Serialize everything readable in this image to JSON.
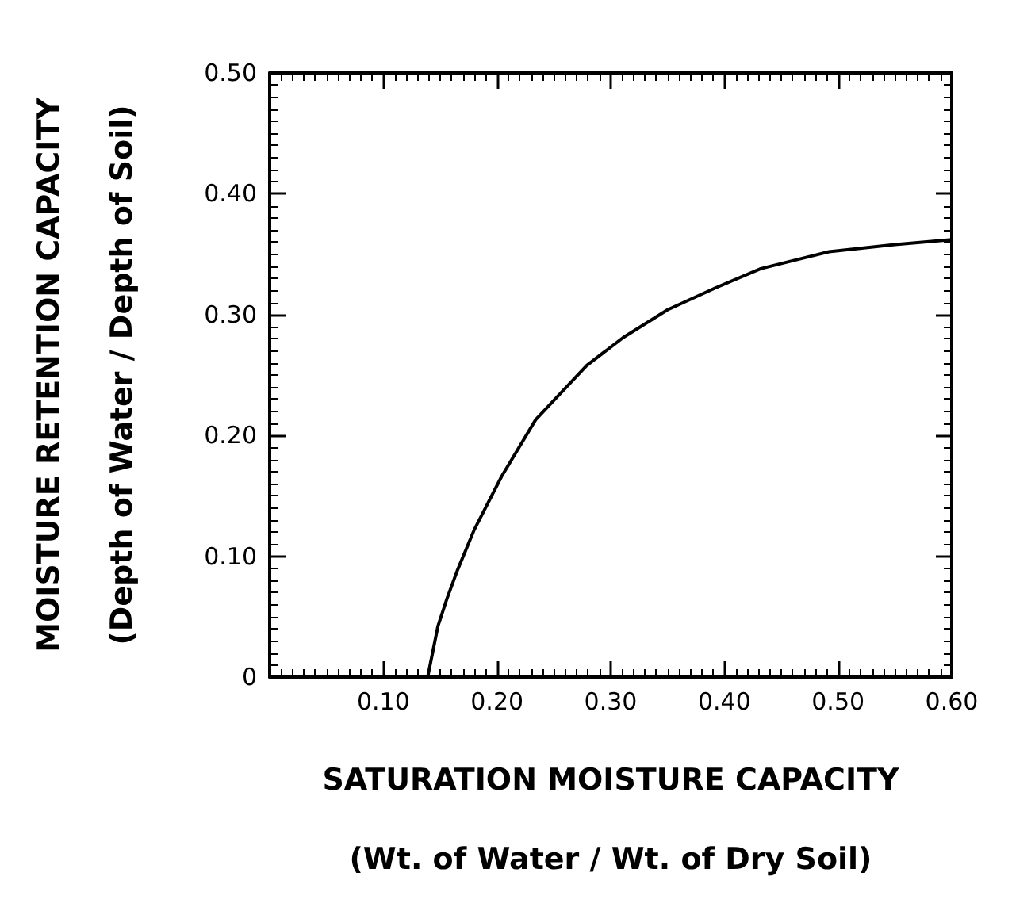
{
  "chart_data": {
    "type": "line",
    "xlabel": "SATURATION MOISTURE CAPACITY\n(Wt. of Water / Wt. of Dry Soil)",
    "ylabel": "MOISTURE RETENTION CAPACITY\n(Depth of Water / Depth of Soil)",
    "x": [
      0.139,
      0.148,
      0.156,
      0.165,
      0.18,
      0.204,
      0.234,
      0.279,
      0.311,
      0.35,
      0.392,
      0.432,
      0.492,
      0.55,
      0.6
    ],
    "series": [
      {
        "color": "#000000",
        "values": [
          0,
          0.042,
          0.065,
          0.088,
          0.122,
          0.166,
          0.213,
          0.258,
          0.281,
          0.304,
          0.322,
          0.338,
          0.352,
          0.358,
          0.362
        ]
      }
    ],
    "xlim": [
      0,
      0.6
    ],
    "ylim": [
      0,
      0.5
    ],
    "xticks": [
      {
        "value": 0,
        "label": null
      },
      {
        "value": 0.1,
        "label": "0.10"
      },
      {
        "value": 0.2,
        "label": "0.20"
      },
      {
        "value": 0.3,
        "label": "0.30"
      },
      {
        "value": 0.4,
        "label": "0.40"
      },
      {
        "value": 0.5,
        "label": "0.50"
      },
      {
        "value": 0.6,
        "label": "0.60"
      }
    ],
    "yticks": [
      0,
      {
        "value": 0.1,
        "label": "0.10"
      },
      {
        "value": 0.2,
        "label": "0.20"
      },
      {
        "value": 0.3,
        "label": "0.30"
      },
      {
        "value": 0.4,
        "label": "0.40"
      },
      {
        "value": 0.5,
        "label": "0.50"
      }
    ],
    "grid": false,
    "marker": "none",
    "line_style": "solid"
  }
}
